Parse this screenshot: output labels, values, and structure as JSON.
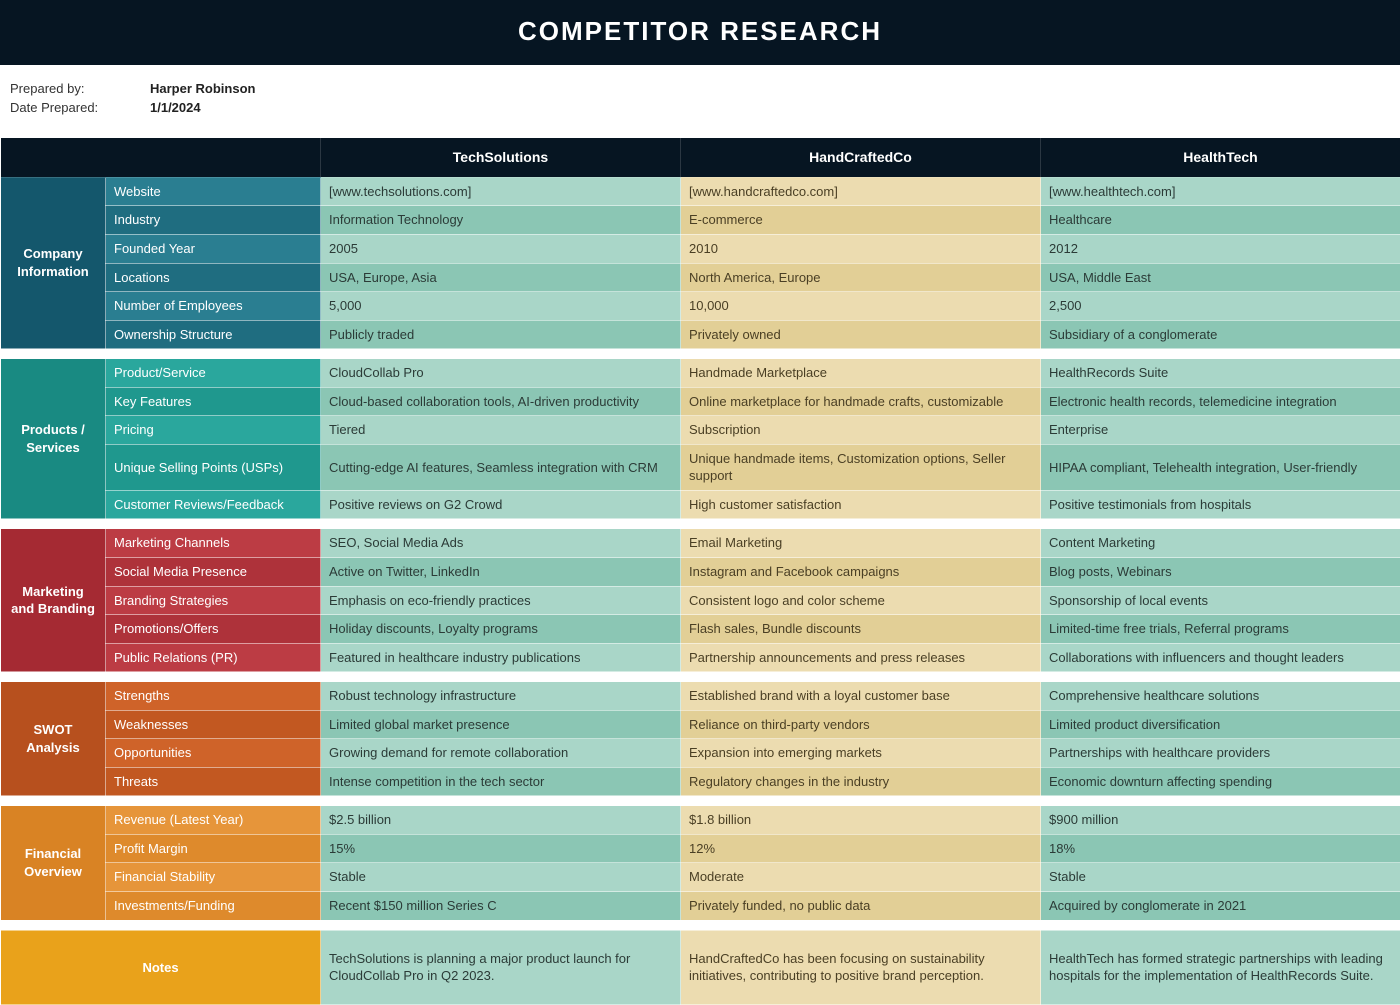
{
  "title": "COMPETITOR RESEARCH",
  "meta": {
    "prepared_by_label": "Prepared by:",
    "prepared_by": "Harper Robinson",
    "date_prepared_label": "Date Prepared:",
    "date_prepared": "1/1/2024"
  },
  "competitors": [
    "TechSolutions",
    "HandCraftedCo",
    "HealthTech"
  ],
  "column_colors": {
    "c1": {
      "light": "#a9d6c8",
      "dark": "#8bc6b4",
      "text": "#2b3b37"
    },
    "c2": {
      "light": "#ecdcb0",
      "dark": "#e2cf96",
      "text": "#4a3f24"
    },
    "c3": {
      "light": "#a9d6c8",
      "dark": "#8bc6b4",
      "text": "#2b3b37"
    }
  },
  "header_bg": "#061522",
  "sections": [
    {
      "name": "Company Information",
      "section_bg": "#14576c",
      "attr_bg_light": "#2a7e91",
      "attr_bg_dark": "#1f6d80",
      "rows": [
        {
          "attr": "Website",
          "values": [
            "[www.techsolutions.com]",
            "[www.handcraftedco.com]",
            "[www.healthtech.com]"
          ]
        },
        {
          "attr": "Industry",
          "values": [
            "Information Technology",
            "E-commerce",
            "Healthcare"
          ]
        },
        {
          "attr": "Founded Year",
          "values": [
            "2005",
            "2010",
            "2012"
          ]
        },
        {
          "attr": "Locations",
          "values": [
            "USA, Europe, Asia",
            "North America, Europe",
            "USA, Middle East"
          ]
        },
        {
          "attr": "Number of Employees",
          "values": [
            "5,000",
            "10,000",
            "2,500"
          ]
        },
        {
          "attr": "Ownership Structure",
          "values": [
            "Publicly traded",
            "Privately owned",
            "Subsidiary of a conglomerate"
          ]
        }
      ]
    },
    {
      "name": "Products / Services",
      "section_bg": "#198a82",
      "attr_bg_light": "#2aa79d",
      "attr_bg_dark": "#1f988e",
      "rows": [
        {
          "attr": "Product/Service",
          "values": [
            "CloudCollab Pro",
            "Handmade Marketplace",
            "HealthRecords Suite"
          ]
        },
        {
          "attr": "Key Features",
          "values": [
            "Cloud-based collaboration tools, AI-driven productivity",
            "Online marketplace for handmade crafts, customizable",
            "Electronic health records, telemedicine integration"
          ]
        },
        {
          "attr": "Pricing",
          "values": [
            "Tiered",
            "Subscription",
            "Enterprise"
          ]
        },
        {
          "attr": "Unique Selling Points (USPs)",
          "values": [
            "Cutting-edge AI features, Seamless integration with CRM",
            "Unique handmade items, Customization options, Seller support",
            "HIPAA compliant, Telehealth integration, User-friendly"
          ]
        },
        {
          "attr": "Customer Reviews/Feedback",
          "values": [
            "Positive reviews on G2 Crowd",
            "High customer satisfaction",
            "Positive testimonials from hospitals"
          ]
        }
      ]
    },
    {
      "name": "Marketing and Branding",
      "section_bg": "#a52a33",
      "attr_bg_light": "#bc3c44",
      "attr_bg_dark": "#ae323a",
      "rows": [
        {
          "attr": "Marketing Channels",
          "values": [
            "SEO, Social Media Ads",
            "Email Marketing",
            "Content Marketing"
          ]
        },
        {
          "attr": "Social Media Presence",
          "values": [
            "Active on Twitter, LinkedIn",
            "Instagram and Facebook campaigns",
            "Blog posts, Webinars"
          ]
        },
        {
          "attr": "Branding Strategies",
          "values": [
            "Emphasis on eco-friendly practices",
            "Consistent logo and color scheme",
            "Sponsorship of local events"
          ]
        },
        {
          "attr": "Promotions/Offers",
          "values": [
            "Holiday discounts, Loyalty programs",
            "Flash sales, Bundle discounts",
            "Limited-time free trials, Referral programs"
          ]
        },
        {
          "attr": "Public Relations (PR)",
          "values": [
            "Featured in healthcare industry publications",
            "Partnership announcements and press releases",
            "Collaborations with influencers and thought leaders"
          ]
        }
      ]
    },
    {
      "name": "SWOT Analysis",
      "section_bg": "#b7501e",
      "attr_bg_light": "#cf6329",
      "attr_bg_dark": "#c25821",
      "rows": [
        {
          "attr": "Strengths",
          "values": [
            "Robust technology infrastructure",
            "Established brand with a loyal customer base",
            "Comprehensive healthcare solutions"
          ]
        },
        {
          "attr": "Weaknesses",
          "values": [
            "Limited global market presence",
            "Reliance on third-party vendors",
            "Limited product diversification"
          ]
        },
        {
          "attr": "Opportunities",
          "values": [
            "Growing demand for remote collaboration",
            "Expansion into emerging markets",
            "Partnerships with healthcare providers"
          ]
        },
        {
          "attr": "Threats",
          "values": [
            "Intense competition in the tech sector",
            "Regulatory changes in the industry",
            "Economic downturn affecting spending"
          ]
        }
      ]
    },
    {
      "name": "Financial Overview",
      "section_bg": "#d98324",
      "attr_bg_light": "#e6953a",
      "attr_bg_dark": "#de8a2c",
      "rows": [
        {
          "attr": "Revenue (Latest Year)",
          "values": [
            "$2.5 billion",
            "$1.8 billion",
            "$900 million"
          ]
        },
        {
          "attr": "Profit Margin",
          "values": [
            "15%",
            "12%",
            "18%"
          ]
        },
        {
          "attr": "Financial Stability",
          "values": [
            "Stable",
            "Moderate",
            "Stable"
          ]
        },
        {
          "attr": "Investments/Funding",
          "values": [
            "Recent $150 million Series C",
            "Privately funded, no public data",
            "Acquired by conglomerate in 2021"
          ]
        }
      ]
    }
  ],
  "notes": {
    "label": "Notes",
    "section_bg": "#e9a21b",
    "values": [
      "TechSolutions is planning a major product launch for CloudCollab Pro in Q2 2023.",
      "HandCraftedCo has been focusing on sustainability initiatives, contributing to positive brand perception.",
      "HealthTech has formed strategic partnerships with leading hospitals for the implementation of HealthRecords Suite."
    ]
  }
}
